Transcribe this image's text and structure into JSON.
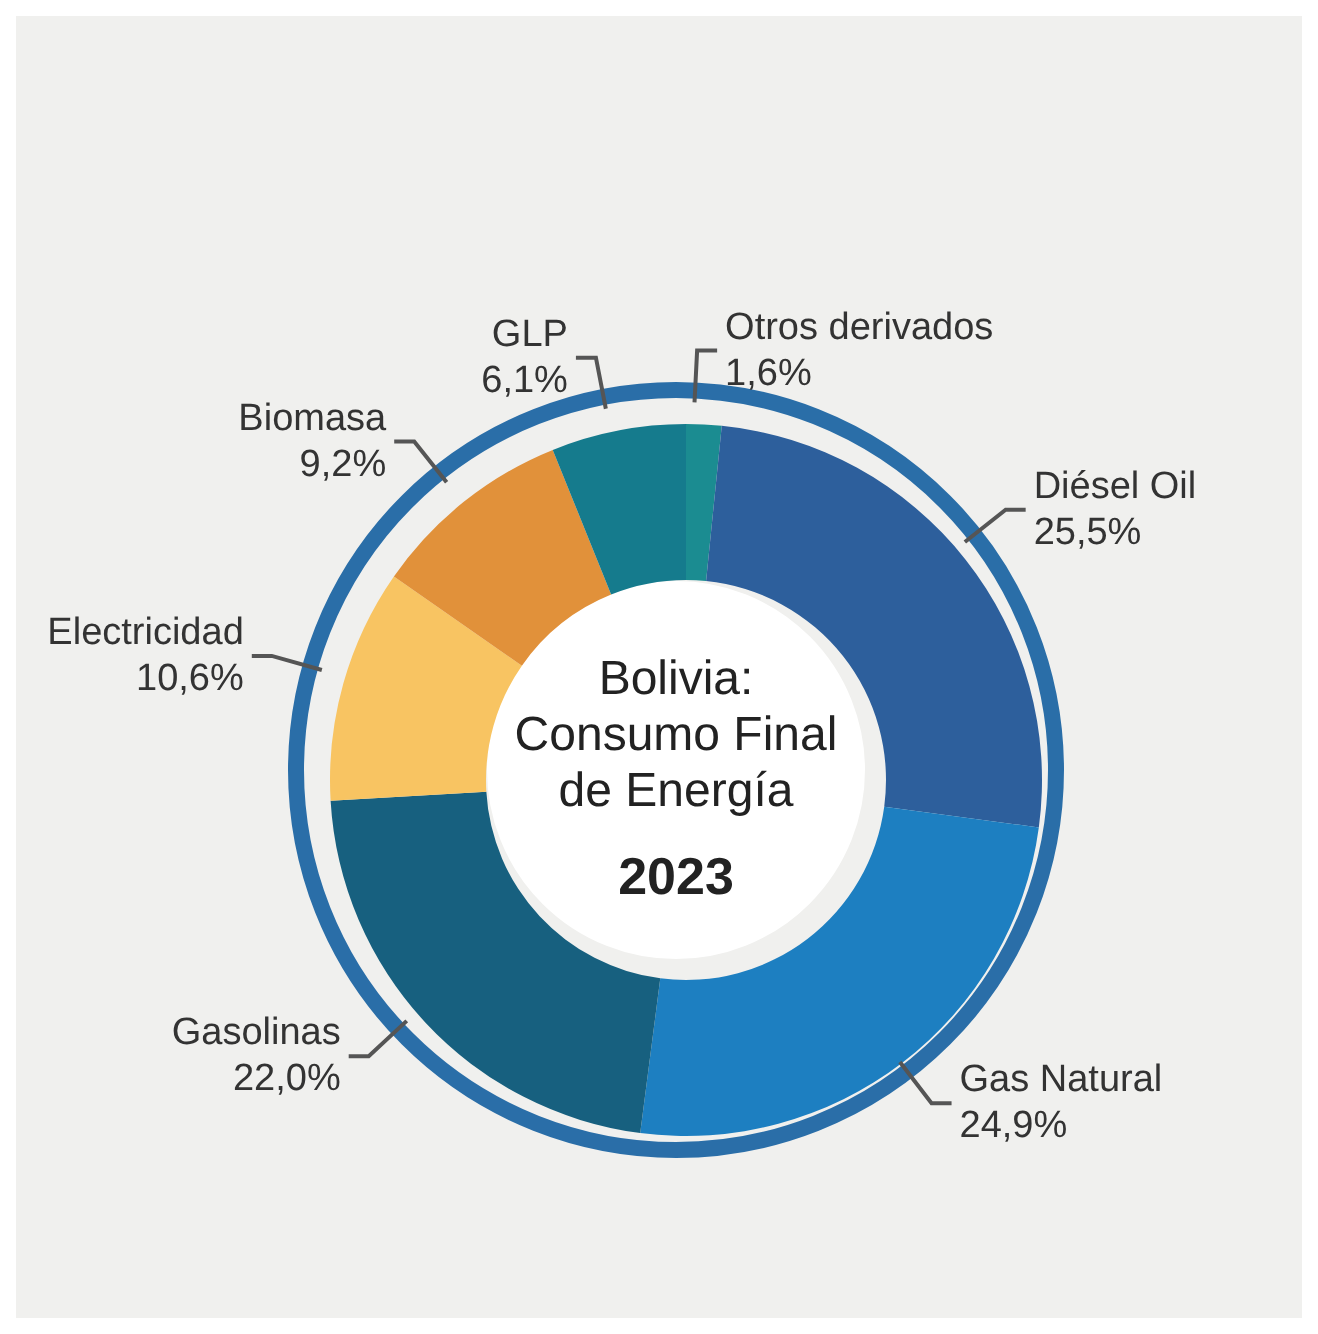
{
  "chart_data": {
    "type": "donut",
    "title": "Bolivia: Consumo Final de Energía",
    "subtitle": "2023",
    "categories": [
      "Otros derivados",
      "Diésel Oil",
      "Gas Natural",
      "Gasolinas",
      "Electricidad",
      "Biomasa",
      "GLP"
    ],
    "values": [
      1.6,
      25.5,
      24.9,
      22.0,
      10.6,
      9.2,
      6.1
    ],
    "value_labels": [
      "1,6%",
      "25,5%",
      "24,9%",
      "22,0%",
      "10,6%",
      "9,2%",
      "6,1%"
    ],
    "colors": [
      "#1b8c91",
      "#2d5f9c",
      "#1d7fc1",
      "#17607f",
      "#f8c462",
      "#e1913a",
      "#157b8d"
    ]
  }
}
